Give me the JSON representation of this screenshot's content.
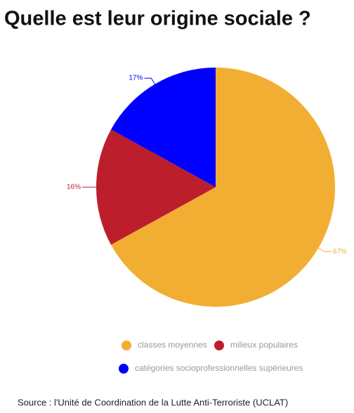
{
  "chart_data": {
    "type": "pie",
    "title": "Quelle est leur origine sociale ?",
    "categories": [
      "classes moyennes",
      "milieux populaires",
      "catégories socioprofessionnelles supérieures"
    ],
    "values": [
      67,
      16,
      17
    ],
    "value_labels": [
      "67%",
      "16%",
      "17%"
    ],
    "colors": [
      "#f2ae33",
      "#bd1e2c",
      "#0000ff"
    ],
    "source": "Source :  l'Unité de Coordination de la Lutte Anti-Terroriste (UCLAT)"
  }
}
